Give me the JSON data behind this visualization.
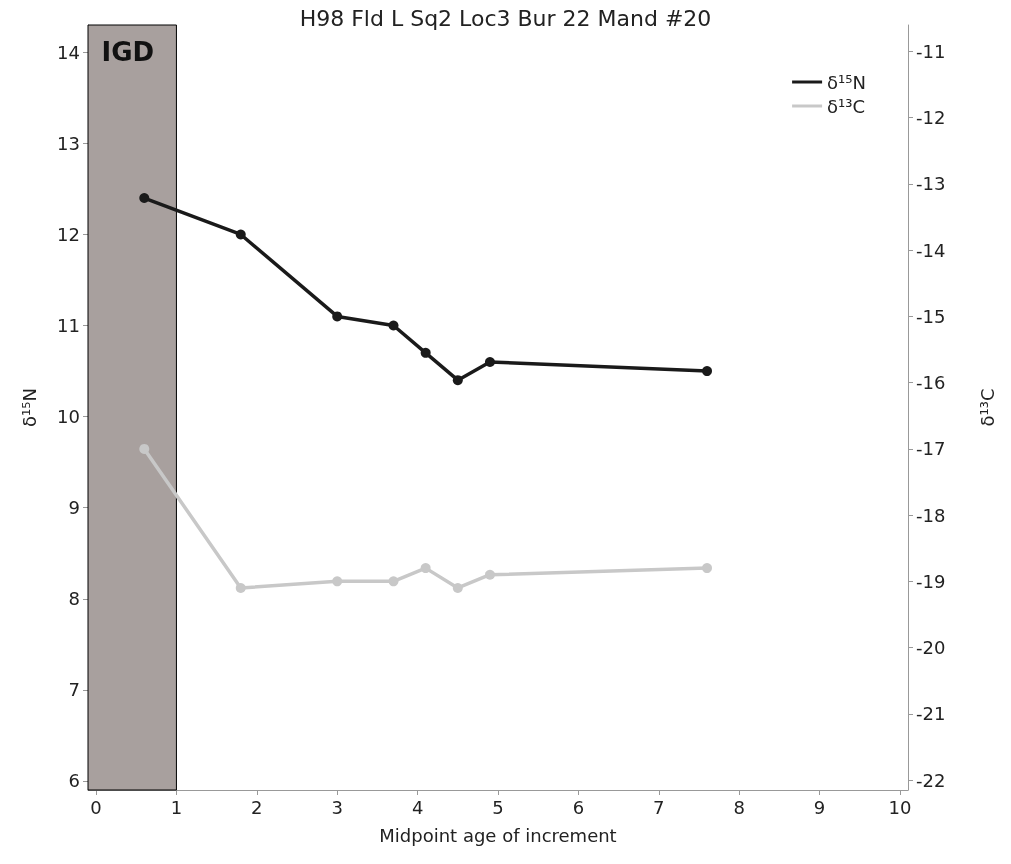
{
  "chart_data": {
    "type": "line",
    "title": "H98 Fld L Sq2 Loc3 Bur 22 Mand #20",
    "xlabel": "Midpoint age of increment",
    "ylabel": "δ¹⁵N",
    "y2label": "δ¹³C",
    "x": [
      0.6,
      1.8,
      3.0,
      3.7,
      4.1,
      4.5,
      4.9,
      7.6
    ],
    "series": [
      {
        "name": "δ¹⁵N",
        "color": "#1a1a1a",
        "values": [
          12.4,
          12.0,
          11.1,
          11.0,
          10.7,
          10.4,
          10.6,
          10.5
        ]
      },
      {
        "name": "δ¹³C",
        "color": "#c8c8c8",
        "axis": "y2",
        "values": [
          -17.0,
          -19.1,
          -19.0,
          -19.0,
          -18.8,
          -19.1,
          -18.9,
          -18.8
        ]
      }
    ],
    "xlim": [
      -0.1,
      10.1
    ],
    "xticks": [
      0,
      1,
      2,
      3,
      4,
      5,
      6,
      7,
      8,
      9,
      10
    ],
    "ylim": [
      5.9,
      14.3
    ],
    "yticks": [
      6,
      7,
      8,
      9,
      10,
      11,
      12,
      13,
      14
    ],
    "y2lim": [
      -22.15,
      -10.6
    ],
    "y2ticks": [
      -22,
      -21,
      -20,
      -19,
      -18,
      -17,
      -16,
      -15,
      -14,
      -13,
      -12,
      -11
    ],
    "bands": [
      {
        "axis": "x",
        "from": -0.1,
        "to": 1,
        "label": "IGD",
        "color": "#a8a09e"
      }
    ],
    "grid": false,
    "legend": "top right",
    "marker": "circle",
    "line_style": "solid"
  }
}
